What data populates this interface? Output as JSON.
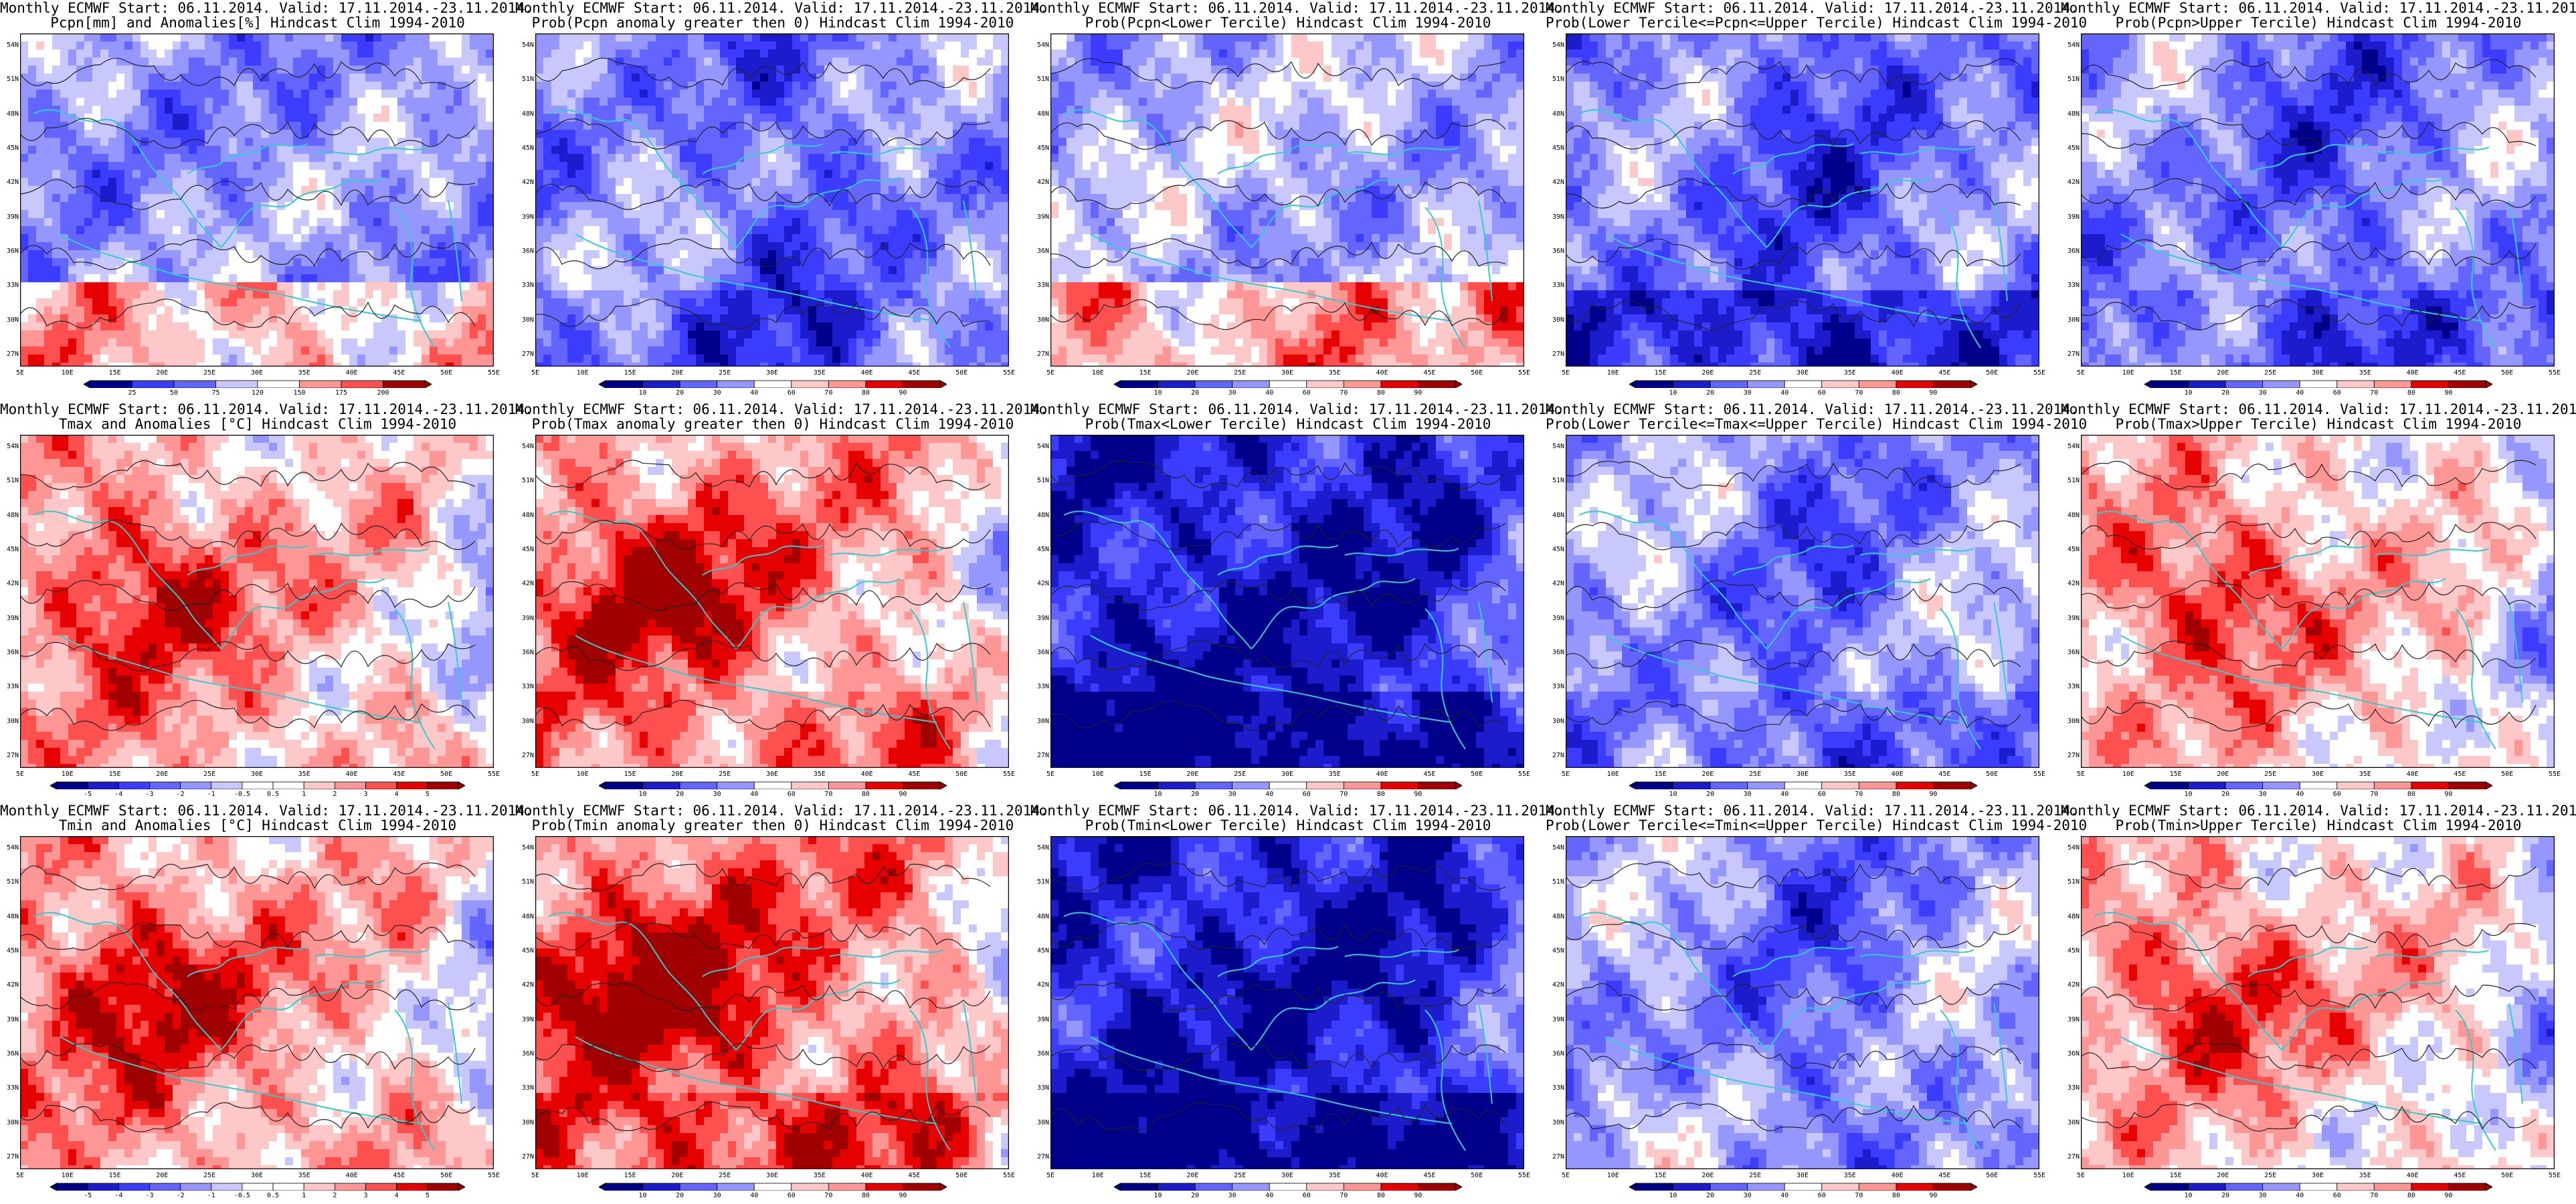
{
  "header": {
    "start": "Monthly ECMWF Start: 06.11.2014. Valid: 17.11.2014.-23.11.2014."
  },
  "axes": {
    "lat_labels": [
      "54N",
      "51N",
      "48N",
      "45N",
      "42N",
      "39N",
      "36N",
      "33N",
      "30N",
      "27N"
    ],
    "lon_labels": [
      "5E",
      "10E",
      "15E",
      "20E",
      "25E",
      "30E",
      "35E",
      "40E",
      "45E",
      "50E",
      "55E"
    ]
  },
  "colorbars": {
    "pcpn_anom": {
      "labels": [
        "25",
        "50",
        "75",
        "120",
        "150",
        "175",
        "200"
      ]
    },
    "temp_anom": {
      "labels": [
        "-5",
        "-4",
        "-3",
        "-2",
        "-1",
        "-0.5",
        "0.5",
        "1",
        "2",
        "3",
        "4",
        "5"
      ]
    },
    "prob": {
      "labels": [
        "10",
        "20",
        "30",
        "40",
        "60",
        "70",
        "80",
        "90"
      ]
    }
  },
  "palettes": {
    "prob": [
      "#00008b",
      "#1c1ccc",
      "#3c3cff",
      "#6464ff",
      "#9696ff",
      "#c8c8ff",
      "#ffffff",
      "#ffc8c8",
      "#ff9696",
      "#ff5050",
      "#e60000",
      "#a00000"
    ],
    "temp": [
      "#00008b",
      "#1c1ccc",
      "#3c3cff",
      "#6464ff",
      "#9696ff",
      "#c8c8ff",
      "#ffffff",
      "#ffc8c8",
      "#ff9696",
      "#ff5050",
      "#e60000",
      "#a00000"
    ],
    "cyan": "#33cccc"
  },
  "panels": [
    {
      "id": "r1c1",
      "line2": "Pcpn[mm] and Anomalies[%] Hindcast Clim 1994-2010",
      "colorbar": "pcpn_anom",
      "bias": -0.25,
      "south": 0.55,
      "pattern": "pcpn_anom"
    },
    {
      "id": "r1c2",
      "line2": "Prob(Pcpn anomaly greater then 0) Hindcast Clim 1994-2010",
      "colorbar": "prob",
      "bias": -0.35,
      "south": -0.2,
      "pattern": "cool"
    },
    {
      "id": "r1c3",
      "line2": "Prob(Pcpn<Lower Tercile) Hindcast Clim 1994-2010",
      "colorbar": "prob",
      "bias": -0.15,
      "south": 0.55,
      "pattern": "pcpn_lower"
    },
    {
      "id": "r1c4",
      "line2": "Prob(Lower Tercile<=Pcpn<=Upper Tercile) Hindcast Clim 1994-2010",
      "colorbar": "prob",
      "bias": -0.4,
      "south": -0.5,
      "pattern": "cool"
    },
    {
      "id": "r1c5",
      "line2": "Prob(Pcpn>Upper Tercile) Hindcast Clim 1994-2010",
      "colorbar": "prob",
      "bias": -0.35,
      "south": -0.25,
      "pattern": "cool"
    },
    {
      "id": "r2c1",
      "line2": "Tmax and Anomalies [°C] Hindcast Clim 1994-2010",
      "colorbar": "temp_anom",
      "bias": 0.25,
      "south": 0.15,
      "pattern": "warm_west"
    },
    {
      "id": "r2c2",
      "line2": "Prob(Tmax anomaly greater then 0) Hindcast Clim 1994-2010",
      "colorbar": "prob",
      "bias": 0.35,
      "south": 0.2,
      "pattern": "warm_west"
    },
    {
      "id": "r2c3",
      "line2": "Prob(Tmax<Lower Tercile) Hindcast Clim 1994-2010",
      "colorbar": "prob",
      "bias": -0.55,
      "south": -0.4,
      "pattern": "cold"
    },
    {
      "id": "r2c4",
      "line2": "Prob(Lower Tercile<=Tmax<=Upper Tercile) Hindcast Clim 1994-2010",
      "colorbar": "prob",
      "bias": -0.3,
      "south": -0.2,
      "pattern": "cool"
    },
    {
      "id": "r2c5",
      "line2": "Prob(Tmax>Upper Tercile) Hindcast Clim 1994-2010",
      "colorbar": "prob",
      "bias": 0.2,
      "south": 0.05,
      "pattern": "warm_west"
    },
    {
      "id": "r3c1",
      "line2": "Tmin and Anomalies [°C] Hindcast Clim 1994-2010",
      "colorbar": "temp_anom",
      "bias": 0.3,
      "south": 0.1,
      "pattern": "warm_west"
    },
    {
      "id": "r3c2",
      "line2": "Prob(Tmin anomaly greater then 0) Hindcast Clim 1994-2010",
      "colorbar": "prob",
      "bias": 0.45,
      "south": 0.3,
      "pattern": "warm_west"
    },
    {
      "id": "r3c3",
      "line2": "Prob(Tmin<Lower Tercile) Hindcast Clim 1994-2010",
      "colorbar": "prob",
      "bias": -0.55,
      "south": -0.45,
      "pattern": "cold"
    },
    {
      "id": "r3c4",
      "line2": "Prob(Lower Tercile<=Tmin<=Upper Tercile) Hindcast Clim 1994-2010",
      "colorbar": "prob",
      "bias": -0.3,
      "south": 0.1,
      "pattern": "cool"
    },
    {
      "id": "r3c5",
      "line2": "Prob(Tmin>Upper Tercile) Hindcast Clim 1994-2010",
      "colorbar": "prob",
      "bias": 0.2,
      "south": 0.0,
      "pattern": "warm_west"
    }
  ]
}
